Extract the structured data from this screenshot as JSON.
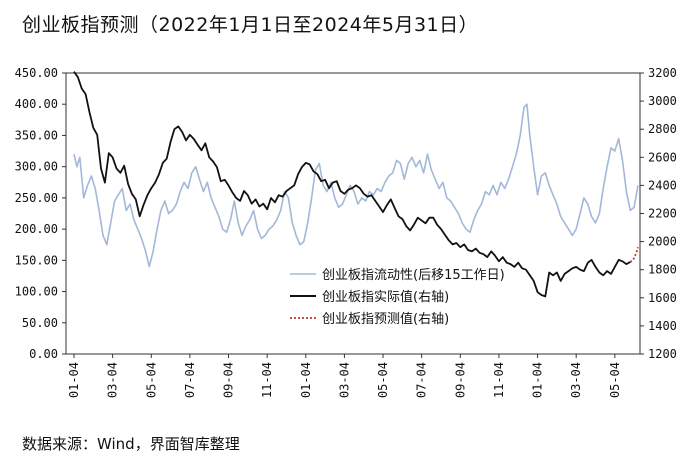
{
  "title": "创业板指预测（2022年1月1日至2024年5月31日）",
  "source": "数据来源：Wind，界面智库整理",
  "chart_data": {
    "type": "line",
    "left_axis": {
      "min": 0,
      "max": 450,
      "step": 50,
      "ticks": [
        "0.00",
        "50.00",
        "100.00",
        "150.00",
        "200.00",
        "250.00",
        "300.00",
        "350.00",
        "400.00",
        "450.00"
      ]
    },
    "right_axis": {
      "min": 1200,
      "max": 3200,
      "step": 200,
      "ticks": [
        "1200",
        "1400",
        "1600",
        "1800",
        "2000",
        "2200",
        "2400",
        "2600",
        "2800",
        "3000",
        "3200"
      ]
    },
    "x_range": [
      0,
      29.2
    ],
    "x_ticks": [
      {
        "pos": 0,
        "label": "01-04"
      },
      {
        "pos": 2,
        "label": "03-04"
      },
      {
        "pos": 4,
        "label": "05-04"
      },
      {
        "pos": 6,
        "label": "07-04"
      },
      {
        "pos": 8,
        "label": "09-04"
      },
      {
        "pos": 10,
        "label": "11-04"
      },
      {
        "pos": 12,
        "label": "01-04"
      },
      {
        "pos": 14,
        "label": "03-04"
      },
      {
        "pos": 16,
        "label": "05-04"
      },
      {
        "pos": 18,
        "label": "07-04"
      },
      {
        "pos": 20,
        "label": "09-04"
      },
      {
        "pos": 22,
        "label": "11-04"
      },
      {
        "pos": 24,
        "label": "01-04"
      },
      {
        "pos": 26,
        "label": "03-04"
      },
      {
        "pos": 28,
        "label": "05-04"
      }
    ],
    "legend_position": "center-right",
    "series": [
      {
        "name": "创业板指流动性(后移15工作日)",
        "axis": "left",
        "color": "#a3b8d8",
        "style": "solid",
        "points": [
          [
            0,
            320
          ],
          [
            0.15,
            300
          ],
          [
            0.3,
            315
          ],
          [
            0.5,
            250
          ],
          [
            0.7,
            270
          ],
          [
            0.9,
            285
          ],
          [
            1.1,
            265
          ],
          [
            1.3,
            230
          ],
          [
            1.5,
            190
          ],
          [
            1.7,
            175
          ],
          [
            1.9,
            210
          ],
          [
            2.1,
            245
          ],
          [
            2.3,
            255
          ],
          [
            2.5,
            265
          ],
          [
            2.7,
            230
          ],
          [
            2.9,
            240
          ],
          [
            3.1,
            215
          ],
          [
            3.3,
            200
          ],
          [
            3.5,
            185
          ],
          [
            3.7,
            165
          ],
          [
            3.9,
            140
          ],
          [
            4.1,
            165
          ],
          [
            4.3,
            200
          ],
          [
            4.5,
            230
          ],
          [
            4.7,
            245
          ],
          [
            4.9,
            225
          ],
          [
            5.1,
            230
          ],
          [
            5.3,
            240
          ],
          [
            5.5,
            260
          ],
          [
            5.7,
            275
          ],
          [
            5.9,
            265
          ],
          [
            6.1,
            290
          ],
          [
            6.3,
            300
          ],
          [
            6.5,
            280
          ],
          [
            6.7,
            260
          ],
          [
            6.9,
            275
          ],
          [
            7.1,
            250
          ],
          [
            7.3,
            235
          ],
          [
            7.5,
            220
          ],
          [
            7.7,
            200
          ],
          [
            7.9,
            195
          ],
          [
            8.1,
            215
          ],
          [
            8.3,
            245
          ],
          [
            8.5,
            210
          ],
          [
            8.7,
            190
          ],
          [
            8.9,
            205
          ],
          [
            9.1,
            215
          ],
          [
            9.3,
            230
          ],
          [
            9.5,
            200
          ],
          [
            9.7,
            185
          ],
          [
            9.9,
            190
          ],
          [
            10.1,
            200
          ],
          [
            10.3,
            205
          ],
          [
            10.5,
            215
          ],
          [
            10.7,
            230
          ],
          [
            10.9,
            260
          ],
          [
            11.1,
            250
          ],
          [
            11.3,
            210
          ],
          [
            11.5,
            190
          ],
          [
            11.7,
            175
          ],
          [
            11.9,
            180
          ],
          [
            12.1,
            210
          ],
          [
            12.3,
            250
          ],
          [
            12.5,
            295
          ],
          [
            12.7,
            305
          ],
          [
            12.9,
            270
          ],
          [
            13.1,
            260
          ],
          [
            13.3,
            275
          ],
          [
            13.5,
            250
          ],
          [
            13.7,
            235
          ],
          [
            13.9,
            240
          ],
          [
            14.1,
            255
          ],
          [
            14.3,
            270
          ],
          [
            14.5,
            260
          ],
          [
            14.7,
            240
          ],
          [
            14.9,
            250
          ],
          [
            15.1,
            245
          ],
          [
            15.3,
            260
          ],
          [
            15.5,
            255
          ],
          [
            15.7,
            265
          ],
          [
            15.9,
            260
          ],
          [
            16.1,
            275
          ],
          [
            16.3,
            285
          ],
          [
            16.5,
            290
          ],
          [
            16.7,
            310
          ],
          [
            16.9,
            305
          ],
          [
            17.1,
            280
          ],
          [
            17.3,
            305
          ],
          [
            17.5,
            315
          ],
          [
            17.7,
            300
          ],
          [
            17.9,
            310
          ],
          [
            18.1,
            290
          ],
          [
            18.3,
            320
          ],
          [
            18.5,
            295
          ],
          [
            18.7,
            280
          ],
          [
            18.9,
            265
          ],
          [
            19.1,
            275
          ],
          [
            19.3,
            250
          ],
          [
            19.5,
            245
          ],
          [
            19.7,
            235
          ],
          [
            19.9,
            225
          ],
          [
            20.1,
            210
          ],
          [
            20.3,
            200
          ],
          [
            20.5,
            195
          ],
          [
            20.7,
            215
          ],
          [
            20.9,
            230
          ],
          [
            21.1,
            240
          ],
          [
            21.3,
            260
          ],
          [
            21.5,
            255
          ],
          [
            21.7,
            270
          ],
          [
            21.9,
            255
          ],
          [
            22.1,
            275
          ],
          [
            22.3,
            265
          ],
          [
            22.5,
            280
          ],
          [
            22.7,
            300
          ],
          [
            22.9,
            320
          ],
          [
            23.1,
            350
          ],
          [
            23.3,
            395
          ],
          [
            23.45,
            400
          ],
          [
            23.6,
            350
          ],
          [
            23.8,
            300
          ],
          [
            24.0,
            255
          ],
          [
            24.2,
            285
          ],
          [
            24.4,
            290
          ],
          [
            24.6,
            270
          ],
          [
            24.8,
            255
          ],
          [
            25.0,
            240
          ],
          [
            25.2,
            220
          ],
          [
            25.4,
            210
          ],
          [
            25.6,
            200
          ],
          [
            25.8,
            190
          ],
          [
            26.0,
            200
          ],
          [
            26.2,
            225
          ],
          [
            26.4,
            250
          ],
          [
            26.6,
            240
          ],
          [
            26.8,
            220
          ],
          [
            27.0,
            210
          ],
          [
            27.2,
            225
          ],
          [
            27.4,
            265
          ],
          [
            27.6,
            300
          ],
          [
            27.8,
            330
          ],
          [
            28.0,
            325
          ],
          [
            28.2,
            345
          ],
          [
            28.4,
            310
          ],
          [
            28.6,
            260
          ],
          [
            28.8,
            230
          ],
          [
            29.0,
            235
          ],
          [
            29.2,
            270
          ]
        ]
      },
      {
        "name": "创业板指实际值(右轴)",
        "axis": "right",
        "color": "#111111",
        "style": "solid",
        "points": [
          [
            0,
            3210
          ],
          [
            0.2,
            3170
          ],
          [
            0.4,
            3090
          ],
          [
            0.6,
            3050
          ],
          [
            0.8,
            2920
          ],
          [
            1.0,
            2810
          ],
          [
            1.2,
            2760
          ],
          [
            1.4,
            2520
          ],
          [
            1.6,
            2420
          ],
          [
            1.8,
            2630
          ],
          [
            2.0,
            2600
          ],
          [
            2.2,
            2520
          ],
          [
            2.4,
            2490
          ],
          [
            2.6,
            2540
          ],
          [
            2.8,
            2410
          ],
          [
            3.0,
            2340
          ],
          [
            3.2,
            2300
          ],
          [
            3.4,
            2180
          ],
          [
            3.6,
            2260
          ],
          [
            3.8,
            2330
          ],
          [
            4.0,
            2380
          ],
          [
            4.2,
            2420
          ],
          [
            4.4,
            2480
          ],
          [
            4.6,
            2560
          ],
          [
            4.8,
            2590
          ],
          [
            5.0,
            2710
          ],
          [
            5.2,
            2800
          ],
          [
            5.4,
            2820
          ],
          [
            5.6,
            2780
          ],
          [
            5.8,
            2720
          ],
          [
            6.0,
            2760
          ],
          [
            6.2,
            2730
          ],
          [
            6.4,
            2690
          ],
          [
            6.6,
            2650
          ],
          [
            6.8,
            2700
          ],
          [
            7.0,
            2600
          ],
          [
            7.2,
            2570
          ],
          [
            7.4,
            2530
          ],
          [
            7.6,
            2430
          ],
          [
            7.8,
            2440
          ],
          [
            8.0,
            2400
          ],
          [
            8.2,
            2350
          ],
          [
            8.4,
            2310
          ],
          [
            8.6,
            2290
          ],
          [
            8.8,
            2360
          ],
          [
            9.0,
            2330
          ],
          [
            9.2,
            2270
          ],
          [
            9.4,
            2300
          ],
          [
            9.6,
            2250
          ],
          [
            9.8,
            2270
          ],
          [
            10.0,
            2230
          ],
          [
            10.2,
            2310
          ],
          [
            10.4,
            2280
          ],
          [
            10.6,
            2330
          ],
          [
            10.8,
            2320
          ],
          [
            11.0,
            2360
          ],
          [
            11.2,
            2380
          ],
          [
            11.4,
            2400
          ],
          [
            11.6,
            2480
          ],
          [
            11.8,
            2530
          ],
          [
            12.0,
            2560
          ],
          [
            12.2,
            2550
          ],
          [
            12.4,
            2500
          ],
          [
            12.6,
            2480
          ],
          [
            12.8,
            2430
          ],
          [
            13.0,
            2440
          ],
          [
            13.2,
            2380
          ],
          [
            13.4,
            2420
          ],
          [
            13.6,
            2430
          ],
          [
            13.8,
            2360
          ],
          [
            14.0,
            2340
          ],
          [
            14.2,
            2370
          ],
          [
            14.4,
            2380
          ],
          [
            14.6,
            2400
          ],
          [
            14.8,
            2380
          ],
          [
            15.0,
            2340
          ],
          [
            15.2,
            2320
          ],
          [
            15.4,
            2330
          ],
          [
            15.6,
            2290
          ],
          [
            15.8,
            2250
          ],
          [
            16.0,
            2210
          ],
          [
            16.2,
            2260
          ],
          [
            16.4,
            2300
          ],
          [
            16.6,
            2240
          ],
          [
            16.8,
            2180
          ],
          [
            17.0,
            2160
          ],
          [
            17.2,
            2110
          ],
          [
            17.4,
            2080
          ],
          [
            17.6,
            2120
          ],
          [
            17.8,
            2170
          ],
          [
            18.0,
            2150
          ],
          [
            18.2,
            2130
          ],
          [
            18.4,
            2170
          ],
          [
            18.6,
            2170
          ],
          [
            18.8,
            2120
          ],
          [
            19.0,
            2090
          ],
          [
            19.2,
            2050
          ],
          [
            19.4,
            2010
          ],
          [
            19.6,
            1980
          ],
          [
            19.8,
            1990
          ],
          [
            20.0,
            1960
          ],
          [
            20.2,
            1980
          ],
          [
            20.4,
            1940
          ],
          [
            20.6,
            1930
          ],
          [
            20.8,
            1950
          ],
          [
            21.0,
            1920
          ],
          [
            21.2,
            1910
          ],
          [
            21.4,
            1890
          ],
          [
            21.6,
            1930
          ],
          [
            21.8,
            1900
          ],
          [
            22.0,
            1860
          ],
          [
            22.2,
            1890
          ],
          [
            22.4,
            1850
          ],
          [
            22.6,
            1840
          ],
          [
            22.8,
            1820
          ],
          [
            23.0,
            1850
          ],
          [
            23.2,
            1810
          ],
          [
            23.4,
            1800
          ],
          [
            23.6,
            1760
          ],
          [
            23.8,
            1720
          ],
          [
            24.0,
            1640
          ],
          [
            24.2,
            1620
          ],
          [
            24.4,
            1610
          ],
          [
            24.6,
            1780
          ],
          [
            24.8,
            1760
          ],
          [
            25.0,
            1780
          ],
          [
            25.2,
            1720
          ],
          [
            25.4,
            1770
          ],
          [
            25.6,
            1790
          ],
          [
            25.8,
            1810
          ],
          [
            26.0,
            1820
          ],
          [
            26.2,
            1800
          ],
          [
            26.4,
            1790
          ],
          [
            26.6,
            1850
          ],
          [
            26.8,
            1870
          ],
          [
            27.0,
            1820
          ],
          [
            27.2,
            1780
          ],
          [
            27.4,
            1760
          ],
          [
            27.6,
            1790
          ],
          [
            27.8,
            1770
          ],
          [
            28.0,
            1820
          ],
          [
            28.2,
            1870
          ],
          [
            28.4,
            1860
          ],
          [
            28.6,
            1840
          ],
          [
            28.8,
            1855
          ]
        ]
      },
      {
        "name": "创业板指预测值(右轴)",
        "axis": "right",
        "color": "#c0392b",
        "style": "dotted",
        "points": [
          [
            28.8,
            1855
          ],
          [
            28.95,
            1870
          ],
          [
            29.05,
            1900
          ],
          [
            29.15,
            1935
          ],
          [
            29.2,
            1960
          ]
        ]
      }
    ]
  }
}
